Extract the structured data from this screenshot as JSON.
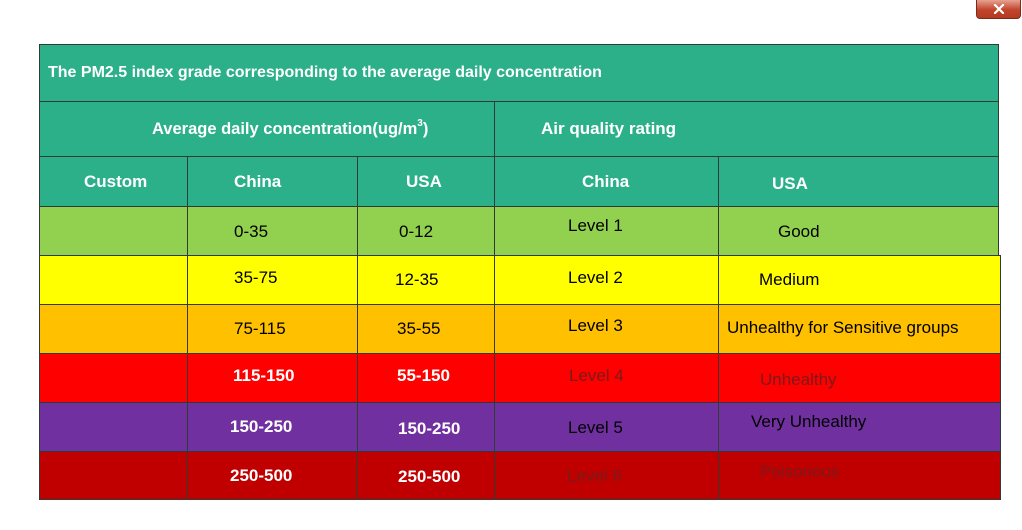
{
  "window": {
    "close_icon": "close-icon"
  },
  "table": {
    "title": "The PM2.5 index grade corresponding to the average daily concentration",
    "avg_header": "Average daily concentration(ug/m",
    "avg_header_sup": "3",
    "avg_header_end": ")",
    "aqr_header": "Air quality rating",
    "columns": [
      "Custom",
      "China",
      "USA",
      "China",
      "USA"
    ],
    "rows": [
      {
        "custom": "",
        "china_conc": "0-35",
        "usa_conc": "0-12",
        "china_level": "Level  1",
        "usa_rating": "Good"
      },
      {
        "custom": "",
        "china_conc": "35-75",
        "usa_conc": "12-35",
        "china_level": "Level  2",
        "usa_rating": "Medium"
      },
      {
        "custom": "",
        "china_conc": "75-115",
        "usa_conc": "35-55",
        "china_level": "Level  3",
        "usa_rating": "Unhealthy for  Sensitive groups"
      },
      {
        "custom": "",
        "china_conc": "115-150",
        "usa_conc": "55-150",
        "china_level": "Level  4",
        "usa_rating": "Unhealthy"
      },
      {
        "custom": "",
        "china_conc": "150-250",
        "usa_conc": "150-250",
        "china_level": "Level  5",
        "usa_rating": "Very Unhealthy"
      },
      {
        "custom": "",
        "china_conc": "250-500",
        "usa_conc": "250-500",
        "china_level": "Level  6",
        "usa_rating": "Poisonous"
      }
    ],
    "row_colors": [
      "#92d050",
      "#ffff00",
      "#ffc000",
      "#ff0000",
      "#7030a0",
      "#c00000"
    ]
  }
}
